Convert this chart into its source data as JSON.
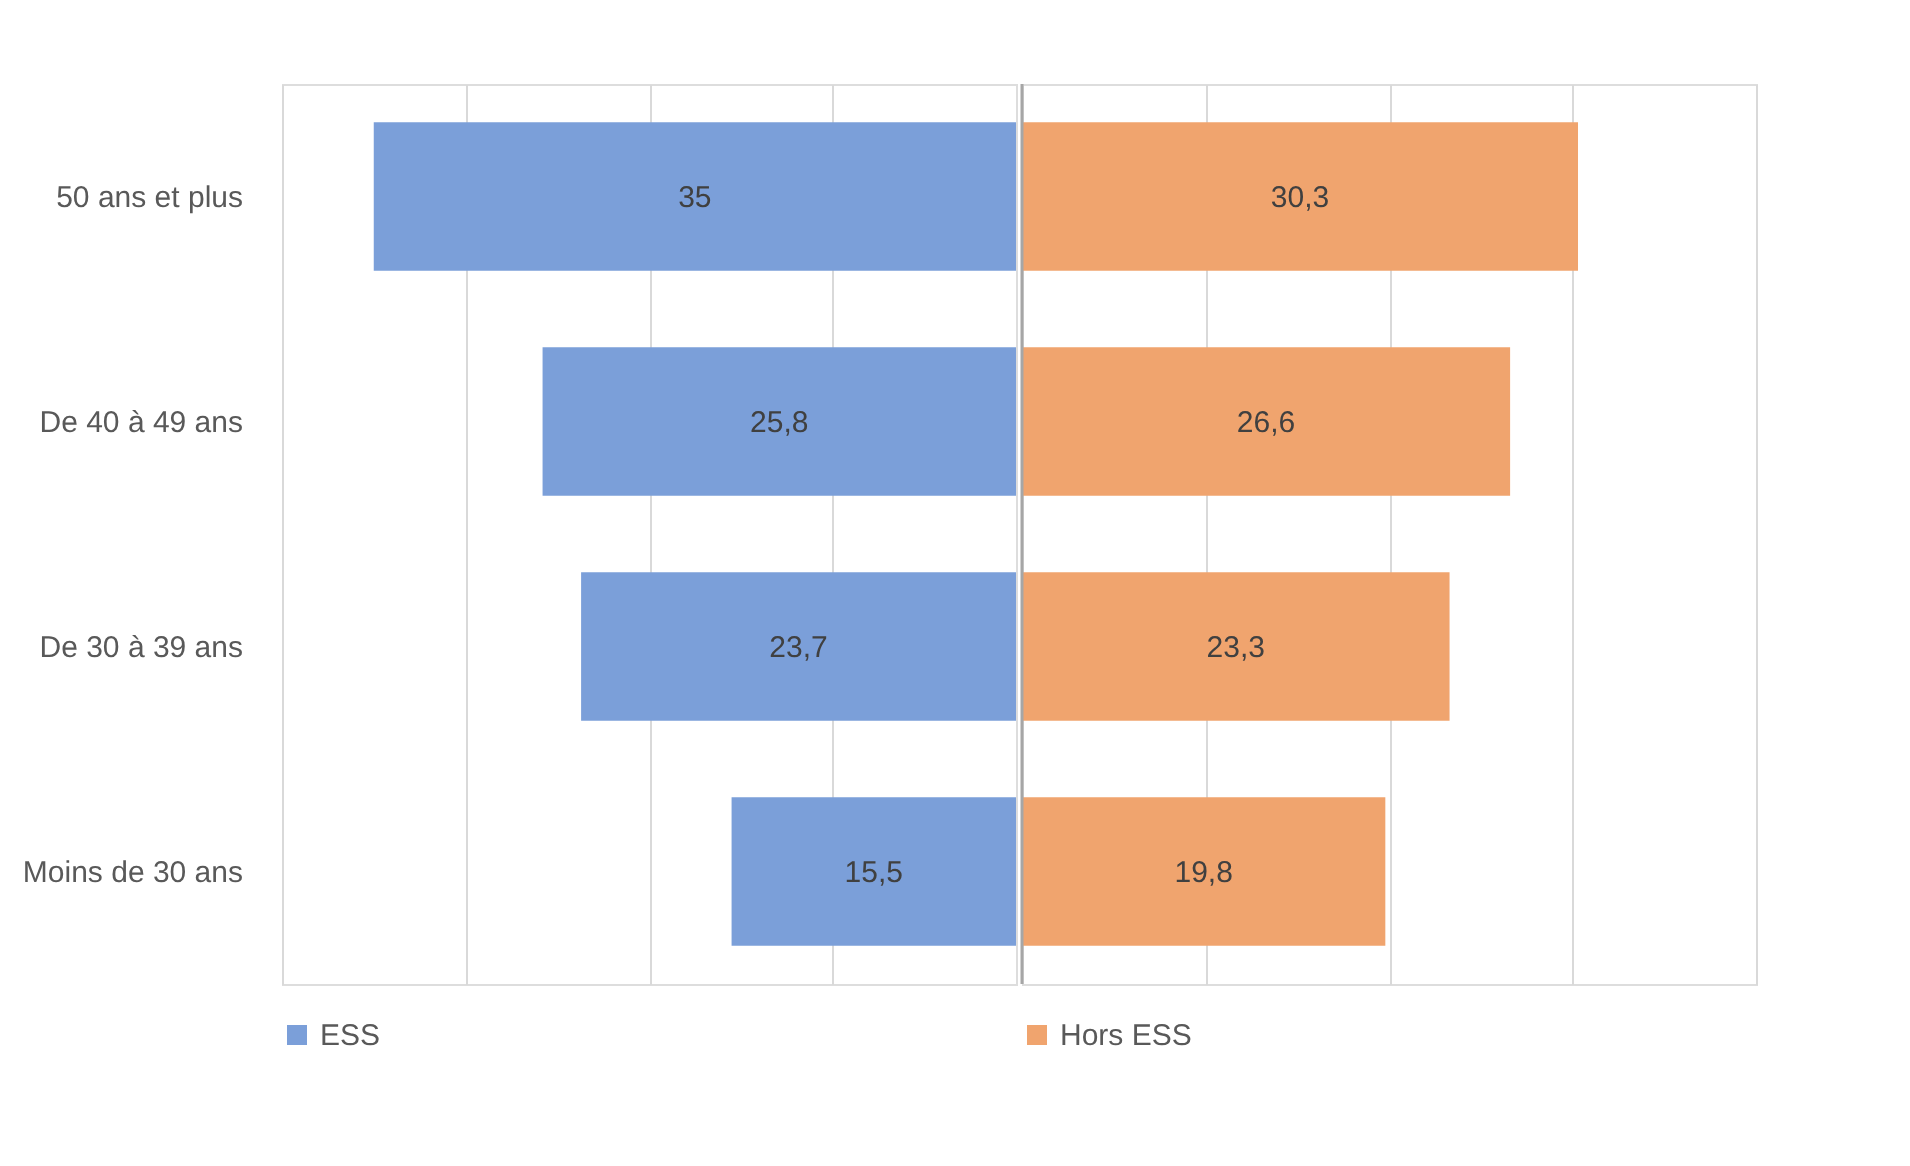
{
  "chart_data": [
    {
      "type": "bar",
      "orientation": "horizontal",
      "categories": [
        "50 ans et plus",
        "De 40 à 49 ans",
        "De 30 à 39 ans",
        "Moins de 30 ans"
      ],
      "series": [
        {
          "name": "ESS",
          "color": "#7b9fd9",
          "values": [
            35,
            25.8,
            23.7,
            15.5
          ],
          "value_labels": [
            "35",
            "25,8",
            "23,7",
            "15,5"
          ]
        }
      ],
      "xlim": [
        40,
        0
      ],
      "xticks": [
        {
          "value": 40,
          "label": null
        },
        {
          "value": 30,
          "label": null
        },
        {
          "value": 20,
          "label": null
        },
        {
          "value": 10,
          "label": null
        }
      ],
      "grid": "x",
      "legend": "bottom",
      "tick_labels": "y"
    },
    {
      "type": "bar",
      "orientation": "horizontal",
      "categories": [
        null,
        null,
        null,
        null
      ],
      "series": [
        {
          "name": "Hors ESS",
          "color": "#f0a46e",
          "values": [
            30.3,
            26.6,
            23.3,
            19.8
          ],
          "value_labels": [
            "30,3",
            "26,6",
            "23,3",
            "19,8"
          ]
        }
      ],
      "xlim": [
        0,
        40
      ],
      "xticks": [
        {
          "value": 10,
          "label": null
        },
        {
          "value": 20,
          "label": null
        },
        {
          "value": 30,
          "label": null
        },
        {
          "value": 40,
          "label": null
        }
      ],
      "ref_lines": [
        {
          "axis": "x",
          "value": 0,
          "label": null,
          "color": "#a6a6a6"
        }
      ],
      "grid": "x",
      "legend": "bottom",
      "tick_labels": false
    }
  ]
}
